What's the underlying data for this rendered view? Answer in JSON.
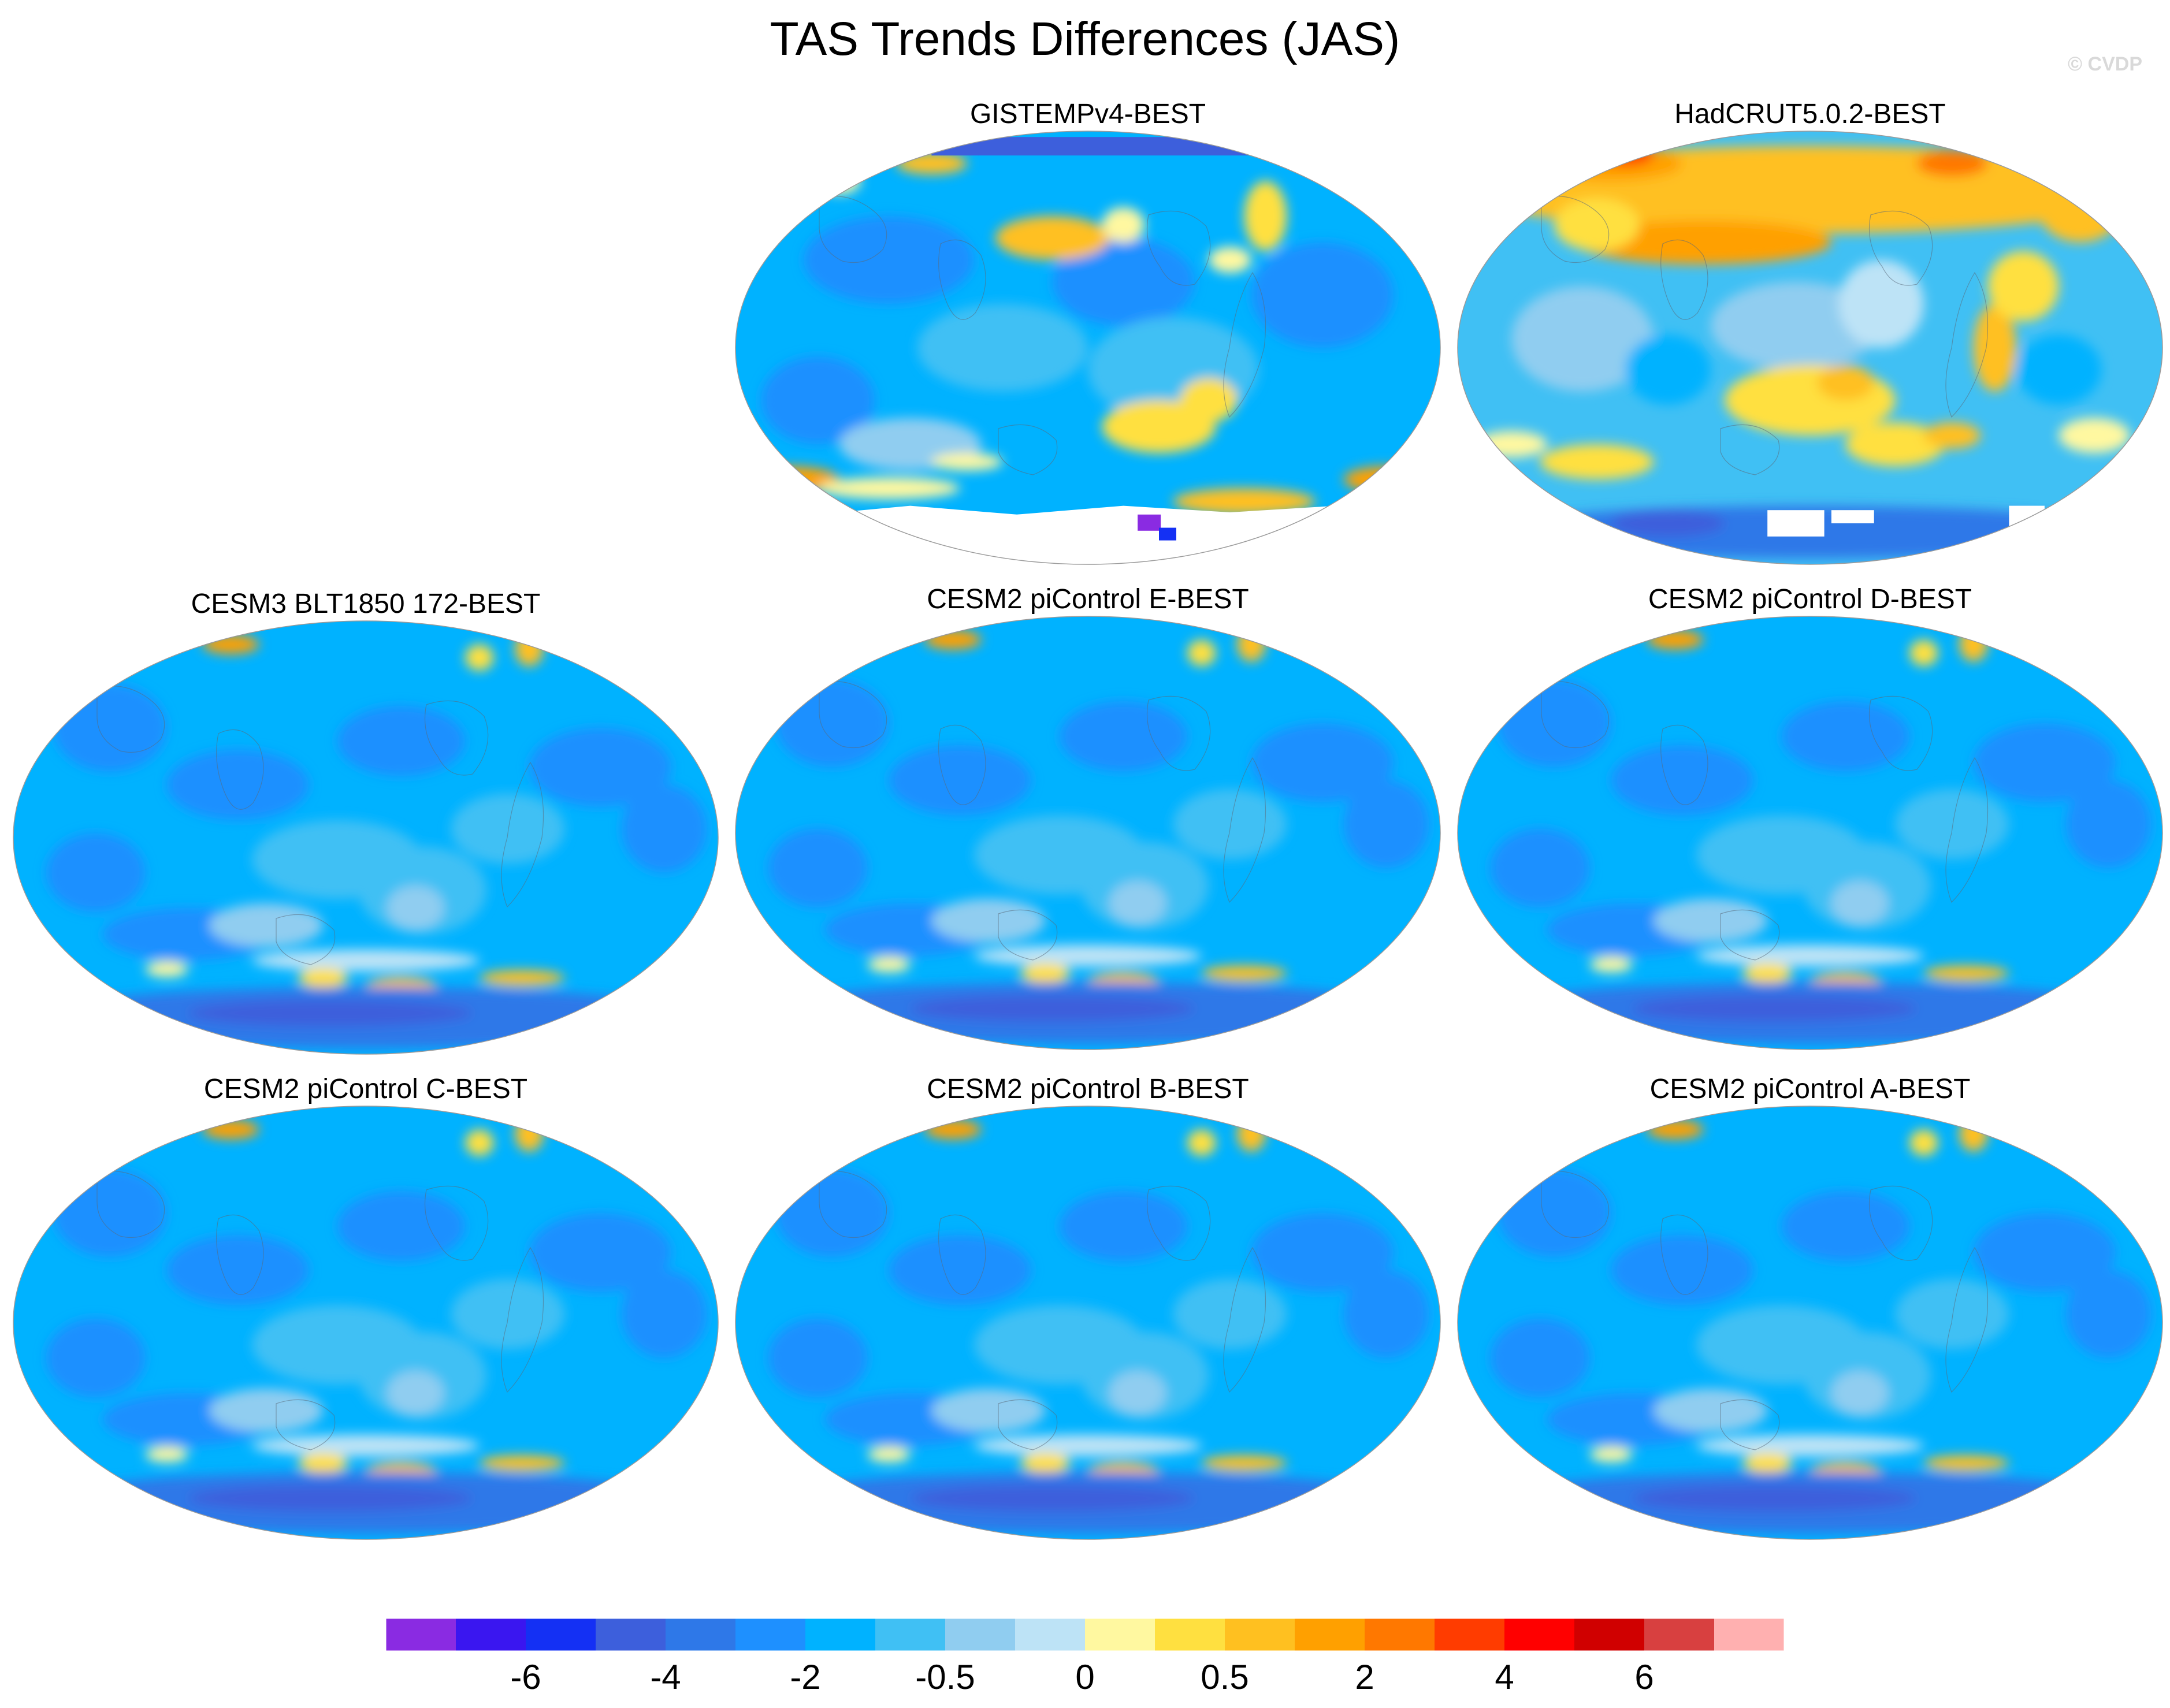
{
  "figure": {
    "title": "TAS Trends Differences (JAS)",
    "credit": "© CVDP"
  },
  "panels": [
    {
      "id": "gistemp",
      "title": "GISTEMPv4-BEST",
      "style": "gistemp"
    },
    {
      "id": "hadcrut",
      "title": "HadCRUT5.0.2-BEST",
      "style": "hadcrut"
    },
    {
      "id": "cesm3",
      "title": "CESM3 BLT1850 172-BEST",
      "style": "model"
    },
    {
      "id": "cesm2e",
      "title": "CESM2 piControl E-BEST",
      "style": "model"
    },
    {
      "id": "cesm2d",
      "title": "CESM2 piControl D-BEST",
      "style": "model"
    },
    {
      "id": "cesm2c",
      "title": "CESM2 piControl C-BEST",
      "style": "model"
    },
    {
      "id": "cesm2b",
      "title": "CESM2 piControl B-BEST",
      "style": "model"
    },
    {
      "id": "cesm2a",
      "title": "CESM2 piControl A-BEST",
      "style": "model"
    }
  ],
  "colorbar": {
    "colors": [
      "#8a2be2",
      "#3a16f0",
      "#1430f4",
      "#3d5fdc",
      "#2e78e8",
      "#1e90ff",
      "#00b2ff",
      "#40c0f4",
      "#90cdf0",
      "#bde3f6",
      "#fff8a0",
      "#ffe040",
      "#ffc020",
      "#ffa000",
      "#ff7800",
      "#ff3c00",
      "#ff0000",
      "#d00000",
      "#d84040",
      "#ffb0b0"
    ],
    "labels": [
      {
        "text": "-6",
        "after_box": 2
      },
      {
        "text": "-4",
        "after_box": 4
      },
      {
        "text": "-2",
        "after_box": 6
      },
      {
        "text": "-0.5",
        "after_box": 8
      },
      {
        "text": "0",
        "after_box": 10
      },
      {
        "text": "0.5",
        "after_box": 12
      },
      {
        "text": "2",
        "after_box": 14
      },
      {
        "text": "4",
        "after_box": 16
      },
      {
        "text": "6",
        "after_box": 18
      }
    ]
  }
}
